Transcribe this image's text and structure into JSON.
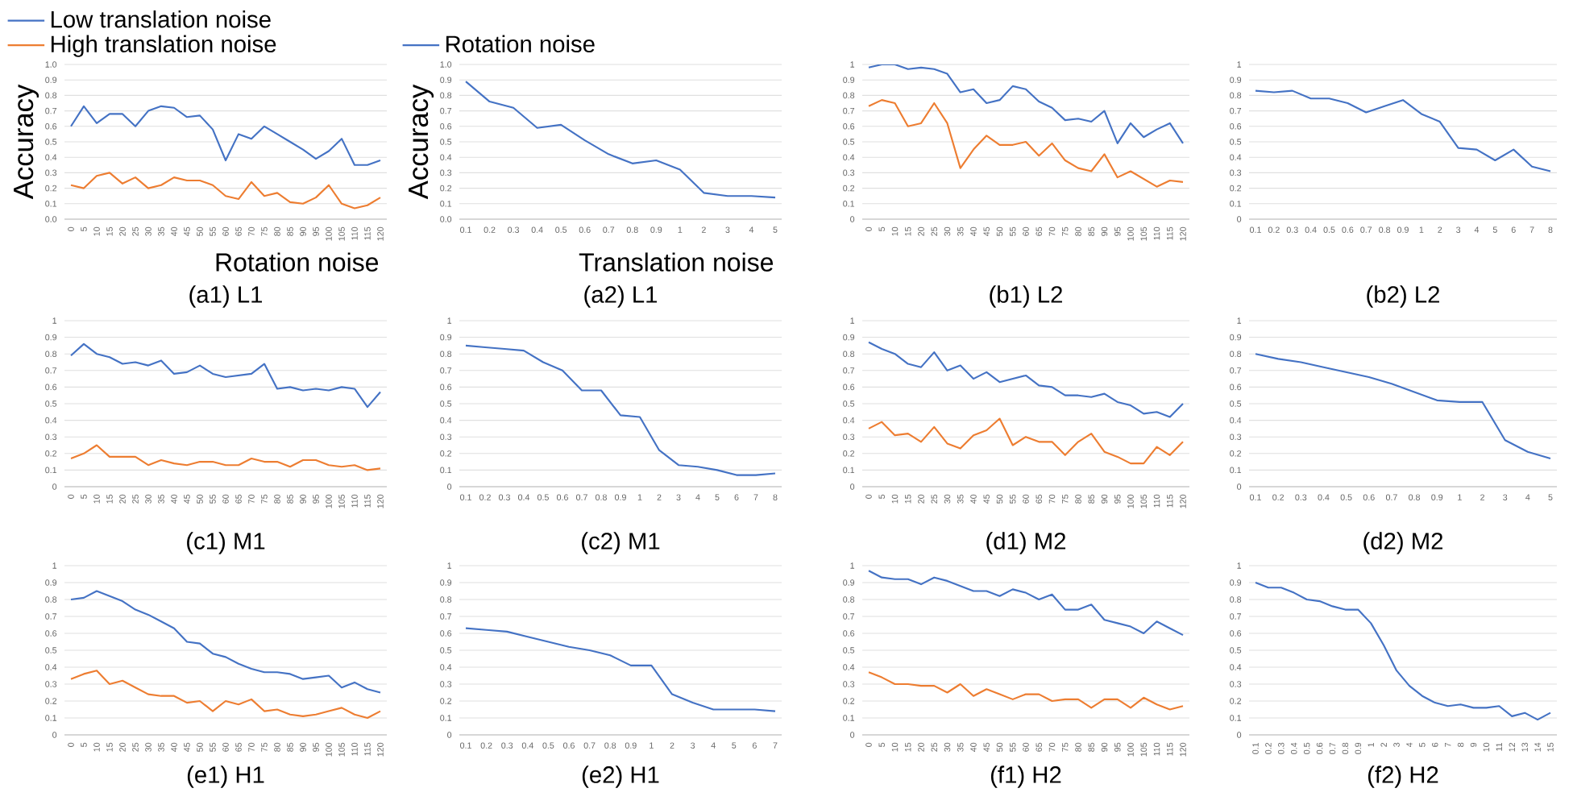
{
  "chart_data": [
    {
      "type": "line",
      "title": "(a1) L1",
      "xlabel": "Rotation noise",
      "ylabel": "Accuracy",
      "categories": [
        "0",
        "5",
        "10",
        "15",
        "20",
        "25",
        "30",
        "35",
        "40",
        "45",
        "50",
        "55",
        "60",
        "65",
        "70",
        "75",
        "80",
        "85",
        "90",
        "95",
        "100",
        "105",
        "110",
        "115",
        "120"
      ],
      "ylim": [
        0,
        1
      ],
      "yticks": [
        {
          "value": 0,
          "label": "0.0"
        },
        {
          "value": 0.1,
          "label": "0.1"
        },
        {
          "value": 0.2,
          "label": "0.2"
        },
        {
          "value": 0.3,
          "label": "0.3"
        },
        {
          "value": 0.4,
          "label": "0.4"
        },
        {
          "value": 0.5,
          "label": "0.5"
        },
        {
          "value": 0.6,
          "label": "0.6"
        },
        {
          "value": 0.7,
          "label": "0.7"
        },
        {
          "value": 0.8,
          "label": "0.8"
        },
        {
          "value": 0.9,
          "label": "0.9"
        },
        {
          "value": 1,
          "label": "1.0"
        }
      ],
      "grid": "y",
      "legend": "top left",
      "series": [
        {
          "name": "Low translation noise",
          "color": "#4472c4",
          "values": [
            0.6,
            0.73,
            0.62,
            0.68,
            0.68,
            0.6,
            0.7,
            0.73,
            0.72,
            0.66,
            0.67,
            0.58,
            0.38,
            0.55,
            0.52,
            0.6,
            0.55,
            0.5,
            0.45,
            0.39,
            0.44,
            0.52,
            0.35,
            0.35,
            0.38
          ]
        },
        {
          "name": "High translation noise",
          "color": "#ed7d31",
          "values": [
            0.22,
            0.2,
            0.28,
            0.3,
            0.23,
            0.27,
            0.2,
            0.22,
            0.27,
            0.25,
            0.25,
            0.22,
            0.15,
            0.13,
            0.24,
            0.15,
            0.17,
            0.11,
            0.1,
            0.14,
            0.22,
            0.1,
            0.07,
            0.09,
            0.14
          ]
        }
      ]
    },
    {
      "type": "line",
      "title": "(a2) L1",
      "xlabel": "Translation noise",
      "ylabel": "Accuracy",
      "categories": [
        "0.1",
        "0.2",
        "0.3",
        "0.4",
        "0.5",
        "0.6",
        "0.7",
        "0.8",
        "0.9",
        "1",
        "2",
        "3",
        "4",
        "5"
      ],
      "ylim": [
        0,
        1
      ],
      "yticks": [
        {
          "value": 0,
          "label": "0.0"
        },
        {
          "value": 0.1,
          "label": "0.1"
        },
        {
          "value": 0.2,
          "label": "0.2"
        },
        {
          "value": 0.3,
          "label": "0.3"
        },
        {
          "value": 0.4,
          "label": "0.4"
        },
        {
          "value": 0.5,
          "label": "0.5"
        },
        {
          "value": 0.6,
          "label": "0.6"
        },
        {
          "value": 0.7,
          "label": "0.7"
        },
        {
          "value": 0.8,
          "label": "0.8"
        },
        {
          "value": 0.9,
          "label": "0.9"
        },
        {
          "value": 1,
          "label": "1.0"
        }
      ],
      "grid": "y",
      "legend": "top left",
      "series": [
        {
          "name": "Rotation noise",
          "color": "#4472c4",
          "values": [
            0.89,
            0.76,
            0.72,
            0.59,
            0.61,
            0.51,
            0.42,
            0.36,
            0.38,
            0.32,
            0.17,
            0.15,
            0.15,
            0.14
          ]
        }
      ]
    },
    {
      "type": "line",
      "title": "(b1) L2",
      "categories": [
        "0",
        "5",
        "10",
        "15",
        "20",
        "25",
        "30",
        "35",
        "40",
        "45",
        "50",
        "55",
        "60",
        "65",
        "70",
        "75",
        "80",
        "85",
        "90",
        "95",
        "100",
        "105",
        "110",
        "115",
        "120"
      ],
      "ylim": [
        0,
        1
      ],
      "yticks": [
        0,
        0.1,
        0.2,
        0.3,
        0.4,
        0.5,
        0.6,
        0.7,
        0.8,
        0.9,
        1
      ],
      "grid": "y",
      "series": [
        {
          "color": "#4472c4",
          "values": [
            0.98,
            1.0,
            1.0,
            0.97,
            0.98,
            0.97,
            0.94,
            0.82,
            0.84,
            0.75,
            0.77,
            0.86,
            0.84,
            0.76,
            0.72,
            0.64,
            0.65,
            0.63,
            0.7,
            0.49,
            0.62,
            0.53,
            0.58,
            0.62,
            0.49
          ]
        },
        {
          "color": "#ed7d31",
          "values": [
            0.73,
            0.77,
            0.75,
            0.6,
            0.62,
            0.75,
            0.62,
            0.33,
            0.45,
            0.54,
            0.48,
            0.48,
            0.5,
            0.41,
            0.49,
            0.38,
            0.33,
            0.31,
            0.42,
            0.27,
            0.31,
            0.26,
            0.21,
            0.25,
            0.24
          ]
        }
      ]
    },
    {
      "type": "line",
      "title": "(b2) L2",
      "categories": [
        "0.1",
        "0.2",
        "0.3",
        "0.4",
        "0.5",
        "0.6",
        "0.7",
        "0.8",
        "0.9",
        "1",
        "2",
        "3",
        "4",
        "5",
        "6",
        "7",
        "8"
      ],
      "ylim": [
        0,
        1
      ],
      "yticks": [
        0,
        0.1,
        0.2,
        0.3,
        0.4,
        0.5,
        0.6,
        0.7,
        0.8,
        0.9,
        1
      ],
      "grid": "y",
      "series": [
        {
          "color": "#4472c4",
          "values": [
            0.83,
            0.82,
            0.83,
            0.78,
            0.78,
            0.75,
            0.69,
            0.73,
            0.77,
            0.68,
            0.63,
            0.46,
            0.45,
            0.38,
            0.45,
            0.34,
            0.31
          ]
        }
      ]
    },
    {
      "type": "line",
      "title": "(c1) M1",
      "categories": [
        "0",
        "5",
        "10",
        "15",
        "20",
        "25",
        "30",
        "35",
        "40",
        "45",
        "50",
        "55",
        "60",
        "65",
        "70",
        "75",
        "80",
        "85",
        "90",
        "95",
        "100",
        "105",
        "110",
        "115",
        "120"
      ],
      "ylim": [
        0,
        1
      ],
      "yticks": [
        0,
        0.1,
        0.2,
        0.3,
        0.4,
        0.5,
        0.6,
        0.7,
        0.8,
        0.9,
        1
      ],
      "grid": "y",
      "series": [
        {
          "color": "#4472c4",
          "values": [
            0.79,
            0.86,
            0.8,
            0.78,
            0.74,
            0.75,
            0.73,
            0.76,
            0.68,
            0.69,
            0.73,
            0.68,
            0.66,
            0.67,
            0.68,
            0.74,
            0.59,
            0.6,
            0.58,
            0.59,
            0.58,
            0.6,
            0.59,
            0.48,
            0.57
          ]
        },
        {
          "color": "#ed7d31",
          "values": [
            0.17,
            0.2,
            0.25,
            0.18,
            0.18,
            0.18,
            0.13,
            0.16,
            0.14,
            0.13,
            0.15,
            0.15,
            0.13,
            0.13,
            0.17,
            0.15,
            0.15,
            0.12,
            0.16,
            0.16,
            0.13,
            0.12,
            0.13,
            0.1,
            0.11
          ]
        }
      ]
    },
    {
      "type": "line",
      "title": "(c2) M1",
      "categories": [
        "0.1",
        "0.2",
        "0.3",
        "0.4",
        "0.5",
        "0.6",
        "0.7",
        "0.8",
        "0.9",
        "1",
        "2",
        "3",
        "4",
        "5",
        "6",
        "7",
        "8"
      ],
      "ylim": [
        0,
        1
      ],
      "yticks": [
        0,
        0.1,
        0.2,
        0.3,
        0.4,
        0.5,
        0.6,
        0.7,
        0.8,
        0.9,
        1
      ],
      "grid": "y",
      "series": [
        {
          "color": "#4472c4",
          "values": [
            0.85,
            0.84,
            0.83,
            0.82,
            0.75,
            0.7,
            0.58,
            0.58,
            0.43,
            0.42,
            0.22,
            0.13,
            0.12,
            0.1,
            0.07,
            0.07,
            0.08
          ]
        }
      ]
    },
    {
      "type": "line",
      "title": "(d1) M2",
      "categories": [
        "0",
        "5",
        "10",
        "15",
        "20",
        "25",
        "30",
        "35",
        "40",
        "45",
        "50",
        "55",
        "60",
        "65",
        "70",
        "75",
        "80",
        "85",
        "90",
        "95",
        "100",
        "105",
        "110",
        "115",
        "120"
      ],
      "ylim": [
        0,
        1
      ],
      "yticks": [
        0,
        0.1,
        0.2,
        0.3,
        0.4,
        0.5,
        0.6,
        0.7,
        0.8,
        0.9,
        1
      ],
      "grid": "y",
      "series": [
        {
          "color": "#4472c4",
          "values": [
            0.87,
            0.83,
            0.8,
            0.74,
            0.72,
            0.81,
            0.7,
            0.73,
            0.65,
            0.69,
            0.63,
            0.65,
            0.67,
            0.61,
            0.6,
            0.55,
            0.55,
            0.54,
            0.56,
            0.51,
            0.49,
            0.44,
            0.45,
            0.42,
            0.5
          ]
        },
        {
          "color": "#ed7d31",
          "values": [
            0.35,
            0.39,
            0.31,
            0.32,
            0.27,
            0.36,
            0.26,
            0.23,
            0.31,
            0.34,
            0.41,
            0.25,
            0.3,
            0.27,
            0.27,
            0.19,
            0.27,
            0.32,
            0.21,
            0.18,
            0.14,
            0.14,
            0.24,
            0.19,
            0.27
          ]
        }
      ]
    },
    {
      "type": "line",
      "title": "(d2) M2",
      "categories": [
        "0.1",
        "0.2",
        "0.3",
        "0.4",
        "0.5",
        "0.6",
        "0.7",
        "0.8",
        "0.9",
        "1",
        "2",
        "3",
        "4",
        "5"
      ],
      "ylim": [
        0,
        1
      ],
      "yticks": [
        0,
        0.1,
        0.2,
        0.3,
        0.4,
        0.5,
        0.6,
        0.7,
        0.8,
        0.9,
        1
      ],
      "grid": "y",
      "series": [
        {
          "color": "#4472c4",
          "values": [
            0.8,
            0.77,
            0.75,
            0.72,
            0.69,
            0.66,
            0.62,
            0.57,
            0.52,
            0.51,
            0.51,
            0.28,
            0.21,
            0.17
          ]
        }
      ]
    },
    {
      "type": "line",
      "title": "(e1) H1",
      "categories": [
        "0",
        "5",
        "10",
        "15",
        "20",
        "25",
        "30",
        "35",
        "40",
        "45",
        "50",
        "55",
        "60",
        "65",
        "70",
        "75",
        "80",
        "85",
        "90",
        "95",
        "100",
        "105",
        "110",
        "115",
        "120"
      ],
      "ylim": [
        0,
        1
      ],
      "yticks": [
        0,
        0.1,
        0.2,
        0.3,
        0.4,
        0.5,
        0.6,
        0.7,
        0.8,
        0.9,
        1
      ],
      "grid": "y",
      "series": [
        {
          "color": "#4472c4",
          "values": [
            0.8,
            0.81,
            0.85,
            0.82,
            0.79,
            0.74,
            0.71,
            0.67,
            0.63,
            0.55,
            0.54,
            0.48,
            0.46,
            0.42,
            0.39,
            0.37,
            0.37,
            0.36,
            0.33,
            0.34,
            0.35,
            0.28,
            0.31,
            0.27,
            0.25
          ]
        },
        {
          "color": "#ed7d31",
          "values": [
            0.33,
            0.36,
            0.38,
            0.3,
            0.32,
            0.28,
            0.24,
            0.23,
            0.23,
            0.19,
            0.2,
            0.14,
            0.2,
            0.18,
            0.21,
            0.14,
            0.15,
            0.12,
            0.11,
            0.12,
            0.14,
            0.16,
            0.12,
            0.1,
            0.14
          ]
        }
      ]
    },
    {
      "type": "line",
      "title": "(e2) H1",
      "categories": [
        "0.1",
        "0.2",
        "0.3",
        "0.4",
        "0.5",
        "0.6",
        "0.7",
        "0.8",
        "0.9",
        "1",
        "2",
        "3",
        "4",
        "5",
        "6",
        "7"
      ],
      "ylim": [
        0,
        1
      ],
      "yticks": [
        0,
        0.1,
        0.2,
        0.3,
        0.4,
        0.5,
        0.6,
        0.7,
        0.8,
        0.9,
        1
      ],
      "grid": "y",
      "series": [
        {
          "color": "#4472c4",
          "values": [
            0.63,
            0.62,
            0.61,
            0.58,
            0.55,
            0.52,
            0.5,
            0.47,
            0.41,
            0.41,
            0.24,
            0.19,
            0.15,
            0.15,
            0.15,
            0.14
          ]
        }
      ]
    },
    {
      "type": "line",
      "title": "(f1) H2",
      "categories": [
        "0",
        "5",
        "10",
        "15",
        "20",
        "25",
        "30",
        "35",
        "40",
        "45",
        "50",
        "55",
        "60",
        "65",
        "70",
        "75",
        "80",
        "85",
        "90",
        "95",
        "100",
        "105",
        "110",
        "115",
        "120"
      ],
      "ylim": [
        0,
        1
      ],
      "yticks": [
        0,
        0.1,
        0.2,
        0.3,
        0.4,
        0.5,
        0.6,
        0.7,
        0.8,
        0.9,
        1
      ],
      "grid": "y",
      "series": [
        {
          "color": "#4472c4",
          "values": [
            0.97,
            0.93,
            0.92,
            0.92,
            0.89,
            0.93,
            0.91,
            0.88,
            0.85,
            0.85,
            0.82,
            0.86,
            0.84,
            0.8,
            0.83,
            0.74,
            0.74,
            0.77,
            0.68,
            0.66,
            0.64,
            0.6,
            0.67,
            0.63,
            0.59
          ]
        },
        {
          "color": "#ed7d31",
          "values": [
            0.37,
            0.34,
            0.3,
            0.3,
            0.29,
            0.29,
            0.25,
            0.3,
            0.23,
            0.27,
            0.24,
            0.21,
            0.24,
            0.24,
            0.2,
            0.21,
            0.21,
            0.16,
            0.21,
            0.21,
            0.16,
            0.22,
            0.18,
            0.15,
            0.17
          ]
        }
      ]
    },
    {
      "type": "line",
      "title": "(f2) H2",
      "categories": [
        "0.1",
        "0.2",
        "0.3",
        "0.4",
        "0.5",
        "0.6",
        "0.7",
        "0.8",
        "0.9",
        "1",
        "2",
        "3",
        "4",
        "5",
        "6",
        "7",
        "8",
        "9",
        "10",
        "11",
        "12",
        "13",
        "14",
        "15"
      ],
      "ylim": [
        0,
        1
      ],
      "yticks": [
        0,
        0.1,
        0.2,
        0.3,
        0.4,
        0.5,
        0.6,
        0.7,
        0.8,
        0.9,
        1
      ],
      "grid": "y",
      "series": [
        {
          "color": "#4472c4",
          "values": [
            0.9,
            0.87,
            0.87,
            0.84,
            0.8,
            0.79,
            0.76,
            0.74,
            0.74,
            0.66,
            0.53,
            0.38,
            0.29,
            0.23,
            0.19,
            0.17,
            0.18,
            0.16,
            0.16,
            0.17,
            0.11,
            0.13,
            0.09,
            0.13
          ]
        }
      ]
    }
  ]
}
